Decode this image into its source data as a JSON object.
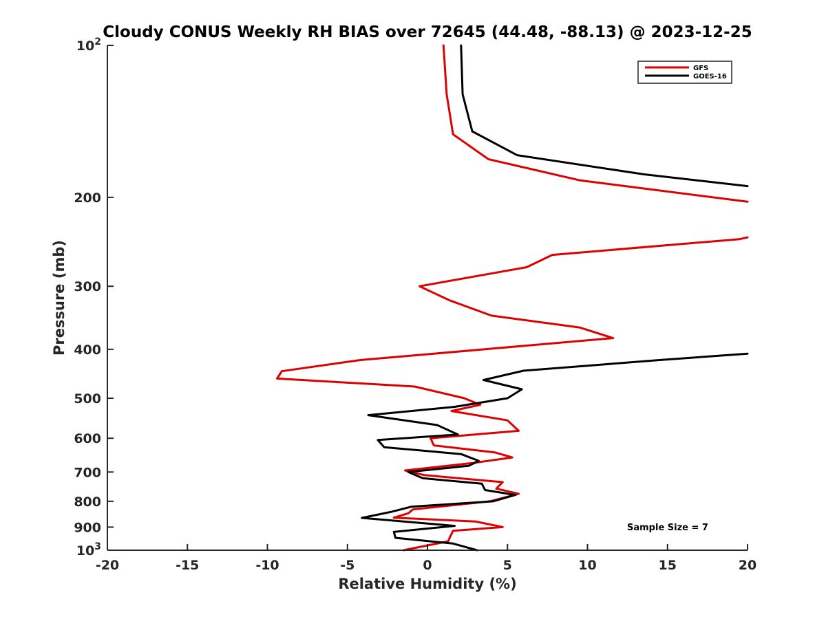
{
  "chart_data": {
    "type": "line",
    "title": "Cloudy CONUS Weekly RH BIAS over 72645 (44.48, -88.13) @ 2023-12-25",
    "xlabel": "Relative Humidity (%)",
    "ylabel": "Pressure (mb)",
    "xlim": [
      -20,
      20
    ],
    "ylim": [
      100,
      1000
    ],
    "y_scale": "log",
    "y_reversed": true,
    "grid": false,
    "legend_position": "top-right",
    "x_ticks": [
      -20,
      -15,
      -10,
      -5,
      0,
      5,
      10,
      15,
      20
    ],
    "x_tick_labels": [
      "-20",
      "-15",
      "-10",
      "-5",
      "0",
      "5",
      "10",
      "15",
      "20"
    ],
    "y_ticks": [
      100,
      200,
      300,
      400,
      500,
      600,
      700,
      800,
      900,
      1000
    ],
    "y_tick_labels": [
      {
        "base": "10",
        "exp": "2"
      },
      {
        "base": "200",
        "exp": ""
      },
      {
        "base": "300",
        "exp": ""
      },
      {
        "base": "400",
        "exp": ""
      },
      {
        "base": "500",
        "exp": ""
      },
      {
        "base": "600",
        "exp": ""
      },
      {
        "base": "700",
        "exp": ""
      },
      {
        "base": "800",
        "exp": ""
      },
      {
        "base": "900",
        "exp": ""
      },
      {
        "base": "10",
        "exp": "3"
      }
    ],
    "annotation": "Sample Size = 7",
    "series": [
      {
        "name": "GFS",
        "color": "#dd0000",
        "segments": [
          [
            {
              "x": 1.0,
              "y": 100
            },
            {
              "x": 1.2,
              "y": 125
            },
            {
              "x": 1.6,
              "y": 150
            },
            {
              "x": 3.8,
              "y": 168
            },
            {
              "x": 9.5,
              "y": 185
            },
            {
              "x": 20.0,
              "y": 204
            }
          ],
          [
            {
              "x": 20.0,
              "y": 240
            },
            {
              "x": 19.5,
              "y": 242
            },
            {
              "x": 7.8,
              "y": 260
            },
            {
              "x": 6.2,
              "y": 275
            },
            {
              "x": -0.5,
              "y": 300
            },
            {
              "x": 1.4,
              "y": 320
            },
            {
              "x": 4.0,
              "y": 343
            },
            {
              "x": 9.5,
              "y": 362
            },
            {
              "x": 11.6,
              "y": 380
            },
            {
              "x": -4.2,
              "y": 420
            },
            {
              "x": -9.1,
              "y": 442
            },
            {
              "x": -9.4,
              "y": 457
            },
            {
              "x": -0.8,
              "y": 474
            },
            {
              "x": 2.3,
              "y": 500
            },
            {
              "x": 3.3,
              "y": 515
            },
            {
              "x": 1.5,
              "y": 530
            },
            {
              "x": 5.0,
              "y": 553
            },
            {
              "x": 5.7,
              "y": 580
            },
            {
              "x": 0.2,
              "y": 600
            },
            {
              "x": 0.4,
              "y": 620
            },
            {
              "x": 4.2,
              "y": 640
            },
            {
              "x": 5.3,
              "y": 655
            },
            {
              "x": 2.8,
              "y": 672
            },
            {
              "x": -1.4,
              "y": 695
            },
            {
              "x": -0.2,
              "y": 710
            },
            {
              "x": 4.7,
              "y": 733
            },
            {
              "x": 4.3,
              "y": 755
            },
            {
              "x": 5.7,
              "y": 773
            },
            {
              "x": 3.9,
              "y": 800
            },
            {
              "x": -0.9,
              "y": 830
            },
            {
              "x": -1.2,
              "y": 845
            },
            {
              "x": -2.1,
              "y": 862
            },
            {
              "x": 3.0,
              "y": 877
            },
            {
              "x": 4.7,
              "y": 900
            },
            {
              "x": 1.6,
              "y": 915
            },
            {
              "x": 1.4,
              "y": 943
            },
            {
              "x": 1.3,
              "y": 960
            },
            {
              "x": -1.5,
              "y": 1000
            }
          ]
        ]
      },
      {
        "name": "GOES-16",
        "color": "#000000",
        "segments": [
          [
            {
              "x": 2.1,
              "y": 100
            },
            {
              "x": 2.2,
              "y": 125
            },
            {
              "x": 2.8,
              "y": 148
            },
            {
              "x": 5.6,
              "y": 165
            },
            {
              "x": 13.5,
              "y": 180
            },
            {
              "x": 20.0,
              "y": 190
            }
          ],
          [
            {
              "x": 20.0,
              "y": 408
            },
            {
              "x": 14.5,
              "y": 420
            },
            {
              "x": 6.0,
              "y": 441
            },
            {
              "x": 3.5,
              "y": 460
            },
            {
              "x": 5.9,
              "y": 480
            },
            {
              "x": 5.0,
              "y": 500
            },
            {
              "x": 1.7,
              "y": 520
            },
            {
              "x": -3.7,
              "y": 540
            },
            {
              "x": 0.6,
              "y": 565
            },
            {
              "x": 1.9,
              "y": 590
            },
            {
              "x": -3.1,
              "y": 605
            },
            {
              "x": -2.7,
              "y": 625
            },
            {
              "x": 2.1,
              "y": 645
            },
            {
              "x": 3.2,
              "y": 665
            },
            {
              "x": 2.6,
              "y": 680
            },
            {
              "x": -1.2,
              "y": 700
            },
            {
              "x": -0.3,
              "y": 720
            },
            {
              "x": 3.4,
              "y": 738
            },
            {
              "x": 3.6,
              "y": 760
            },
            {
              "x": 5.5,
              "y": 777
            },
            {
              "x": 4.1,
              "y": 800
            },
            {
              "x": -1.0,
              "y": 820
            },
            {
              "x": -2.3,
              "y": 840
            },
            {
              "x": -4.1,
              "y": 863
            },
            {
              "x": 1.7,
              "y": 895
            },
            {
              "x": -2.1,
              "y": 920
            },
            {
              "x": -2.0,
              "y": 945
            },
            {
              "x": 1.6,
              "y": 970
            },
            {
              "x": 3.1,
              "y": 1000
            }
          ]
        ]
      }
    ]
  }
}
